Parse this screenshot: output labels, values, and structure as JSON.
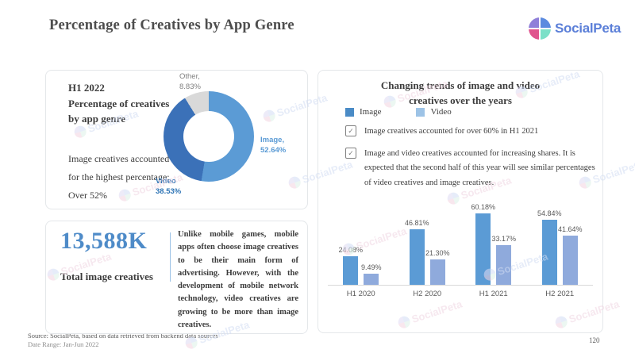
{
  "page": {
    "title": "Percentage of Creatives by App Genre",
    "page_number": "120"
  },
  "brand": {
    "name": "SocialPeta",
    "watermark_text": "SocialPeta"
  },
  "footer": {
    "source": "Source: SocialPeta, based on data retrieved from backend data sources",
    "date_range": "Date Range: Jan-Jun 2022"
  },
  "donut_card": {
    "heading_lines": [
      "H1 2022",
      "Percentage of creatives",
      "by app genre"
    ],
    "note_lines": [
      "Image creatives accounted",
      "for the highest percentage:",
      "Over 52%"
    ],
    "labels": {
      "other": [
        "Other,",
        "8.83%"
      ],
      "image": [
        "Image,",
        "52.64%"
      ],
      "video": [
        "Video",
        "38.53%"
      ]
    }
  },
  "stat_card": {
    "value": "13,588K",
    "label": "Total image creatives",
    "description": "Unlike mobile games, mobile apps often choose image creatives to be their main form of advertising. However, with the development of mobile network technology, video creatives are growing to be more than image creatives."
  },
  "trends_card": {
    "title_lines": [
      "Changing trends of image and video",
      "creatives over the years"
    ],
    "legend": [
      {
        "label": "Image",
        "color": "#4a8bc6"
      },
      {
        "label": "Video",
        "color": "#9dc3e6"
      }
    ],
    "checkbox_glyph": "✓",
    "bullets": [
      "Image creatives accounted for over 60% in H1 2021",
      "Image and video creatives accounted for increasing shares. It is expected that the second half of this year will see similar percentages of video creatives and image creatives."
    ]
  },
  "chart_data": [
    {
      "type": "pie",
      "subtype": "donut",
      "title": "H1 2022 Percentage of creatives by app genre",
      "slices": [
        {
          "label": "Image",
          "value": 52.64,
          "color": "#5b9bd5"
        },
        {
          "label": "Video",
          "value": 38.53,
          "color": "#3b71b8"
        },
        {
          "label": "Other",
          "value": 8.83,
          "color": "#d9d9d9"
        }
      ]
    },
    {
      "type": "bar",
      "title": "Changing trends of image and video creatives over the years",
      "categories": [
        "H1 2020",
        "H2 2020",
        "H1 2021",
        "H2 2021"
      ],
      "series": [
        {
          "name": "Image",
          "color": "#5b9bd5",
          "values": [
            24.08,
            46.81,
            60.18,
            54.84
          ],
          "labels": [
            "24.08%",
            "46.81%",
            "60.18%",
            "54.84%"
          ]
        },
        {
          "name": "Video",
          "color": "#8faadc",
          "values": [
            9.49,
            21.3,
            33.17,
            41.64
          ],
          "labels": [
            "9.49%",
            "21.30%",
            "33.17%",
            "41.64%"
          ]
        }
      ],
      "value_suffix": "%",
      "ylim": [
        0,
        65
      ],
      "grid": false,
      "legend_position": "top"
    }
  ]
}
